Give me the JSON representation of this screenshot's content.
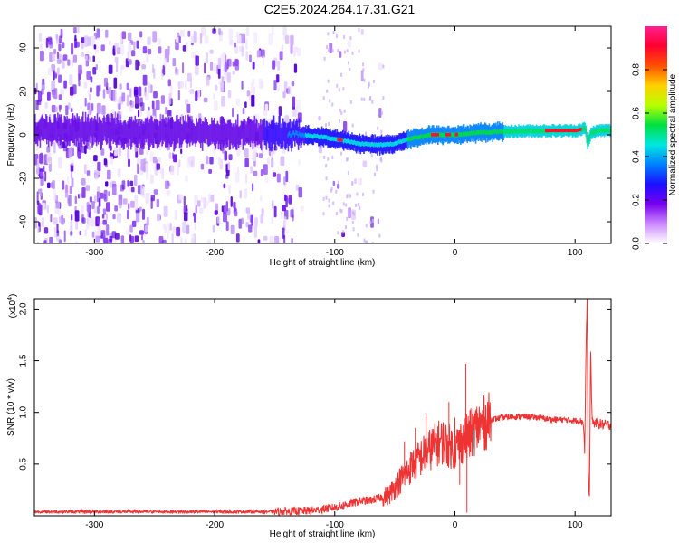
{
  "title": "C2E5.2024.264.17.31.G21",
  "chart_data": [
    {
      "type": "heatmap",
      "name": "spectrogram",
      "xlabel": "Height of straight line (km)",
      "ylabel": "Frequency (Hz)",
      "xlim": [
        -350,
        130
      ],
      "ylim": [
        -50,
        50
      ],
      "xticks": [
        -300,
        -200,
        -100,
        0,
        100
      ],
      "yticks": [
        -40,
        -20,
        0,
        20,
        40
      ],
      "colorbar": {
        "label": "Normalized spectral amplitude",
        "range": [
          0.0,
          1.0
        ],
        "ticks": [
          "0.0",
          "0.2",
          "0.4",
          "0.6",
          "0.8"
        ],
        "colormap": [
          "#ffffff",
          "#cc88ff",
          "#7700ee",
          "#1a10ff",
          "#0080ff",
          "#00e8e0",
          "#00e040",
          "#b8ff00",
          "#ffd000",
          "#ff5000",
          "#ff0030",
          "#ff2090"
        ]
      },
      "ridge": {
        "x": [
          -350,
          -300,
          -250,
          -200,
          -150,
          -130,
          -110,
          -100,
          -90,
          -80,
          -70,
          -60,
          -50,
          -40,
          -30,
          -20,
          -10,
          0,
          10,
          20,
          40,
          60,
          80,
          100,
          108,
          110,
          113,
          120,
          130
        ],
        "y": [
          2,
          2,
          1,
          1,
          0.5,
          0,
          -1,
          -2,
          -3,
          -4,
          -4.5,
          -4.5,
          -4,
          -2,
          -1,
          0,
          0,
          0,
          0.5,
          1,
          1.5,
          1.8,
          1.9,
          1.9,
          3,
          -4,
          1,
          2,
          2
        ]
      }
    },
    {
      "type": "line",
      "name": "snr",
      "xlabel": "Height of straight line (km)",
      "ylabel": "SNR (10 * v/v)",
      "scale_label": "(x10",
      "scale_exponent": "4",
      "xlim": [
        -350,
        130
      ],
      "ylim": [
        0,
        2.1
      ],
      "xticks": [
        -300,
        -200,
        -100,
        0,
        100
      ],
      "yticks": [
        "0.5",
        "1.0",
        "1.5",
        "2.0"
      ],
      "ytick_values": [
        0.5,
        1.0,
        1.5,
        2.0
      ],
      "color": "#ee3333",
      "series": [
        {
          "x": [
            -350,
            -300,
            -250,
            -200,
            -150,
            -120,
            -100,
            -90,
            -80,
            -70,
            -60,
            -55,
            -50,
            -45,
            -40,
            -35,
            -30,
            -25,
            -20,
            -15,
            -10,
            -5,
            0,
            5,
            10,
            15,
            20,
            25,
            30,
            40,
            50,
            60,
            70,
            80,
            90,
            100,
            105,
            107,
            108,
            109,
            110,
            111,
            112,
            113,
            114,
            115,
            120,
            125,
            130
          ],
          "y": [
            0.04,
            0.04,
            0.04,
            0.04,
            0.04,
            0.05,
            0.08,
            0.11,
            0.14,
            0.15,
            0.18,
            0.2,
            0.28,
            0.35,
            0.42,
            0.5,
            0.55,
            0.6,
            0.65,
            0.7,
            0.72,
            0.68,
            0.65,
            0.72,
            0.75,
            0.82,
            0.87,
            0.9,
            0.93,
            0.95,
            0.96,
            0.96,
            0.95,
            0.93,
            0.93,
            0.92,
            0.92,
            0.9,
            0.6,
            1.5,
            2.1,
            0.4,
            0.15,
            1.6,
            1.0,
            0.9,
            0.89,
            0.88,
            0.88
          ]
        }
      ],
      "spikes": [
        {
          "x": -42,
          "y": 0.72
        },
        {
          "x": -33,
          "y": 0.85
        },
        {
          "x": -24,
          "y": 0.98
        },
        {
          "x": -5,
          "y": 1.1
        },
        {
          "x": 0,
          "y": 0.95
        },
        {
          "x": 4,
          "y": 0.3
        },
        {
          "x": 9,
          "y": 1.47
        },
        {
          "x": 10,
          "y": 0.03
        },
        {
          "x": 16,
          "y": 0.65
        }
      ]
    }
  ]
}
